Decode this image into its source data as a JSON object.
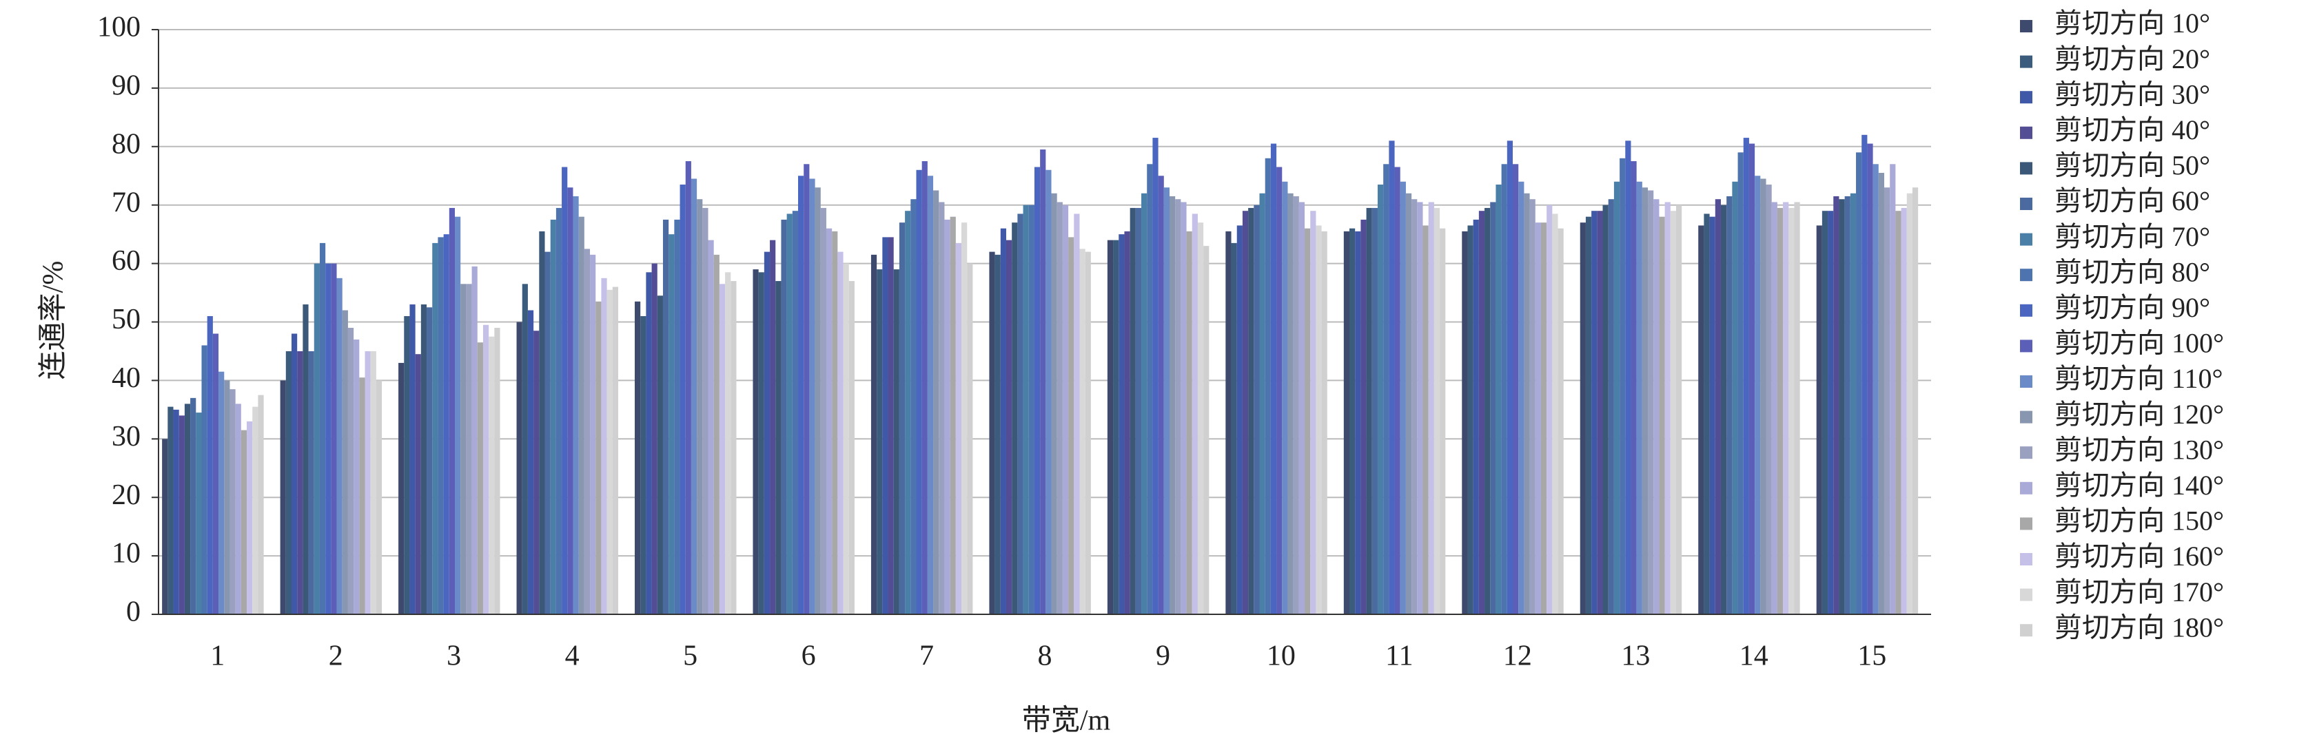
{
  "chart_data": {
    "type": "bar",
    "x_label": "带宽/m",
    "y_label": "连通率/%",
    "categories": [
      "1",
      "2",
      "3",
      "4",
      "5",
      "6",
      "7",
      "8",
      "9",
      "10",
      "11",
      "12",
      "13",
      "14",
      "15"
    ],
    "ylim": [
      0,
      100
    ],
    "yticks": [
      0,
      10,
      20,
      30,
      40,
      50,
      60,
      70,
      80,
      90,
      100
    ],
    "grid": true,
    "series": [
      {
        "name": "剪切方向 10°",
        "color": "#3d4a6e",
        "values": [
          30,
          40,
          43,
          50,
          53.5,
          59,
          61.5,
          62,
          64,
          65.5,
          65.5,
          65.5,
          67,
          66.5,
          66.5
        ]
      },
      {
        "name": "剪切方向 20°",
        "color": "#3c5c7e",
        "values": [
          35.5,
          45,
          51,
          56.5,
          51,
          58.5,
          59,
          61.5,
          64,
          63.5,
          66,
          66.5,
          68,
          68.5,
          69
        ]
      },
      {
        "name": "剪切方向 30°",
        "color": "#4058a8",
        "values": [
          35,
          48,
          53,
          52,
          58.5,
          62,
          64.5,
          66,
          65,
          66.5,
          65.5,
          67.5,
          69,
          68,
          69
        ]
      },
      {
        "name": "剪切方向 40°",
        "color": "#534d96",
        "values": [
          34,
          45,
          44.5,
          48.5,
          60,
          64,
          64.5,
          64,
          65.5,
          69,
          67.5,
          69,
          69,
          71,
          71.5
        ]
      },
      {
        "name": "剪切方向 50°",
        "color": "#3b5878",
        "values": [
          36,
          53,
          53,
          65.5,
          54.5,
          57,
          59,
          67,
          69.5,
          69.5,
          69.5,
          69.5,
          70,
          70,
          71
        ]
      },
      {
        "name": "剪切方向 60°",
        "color": "#4a6aa0",
        "values": [
          37,
          45,
          52.5,
          62,
          67.5,
          67.5,
          67,
          68.5,
          69.5,
          70,
          69.5,
          70.5,
          71,
          71.5,
          71.5
        ]
      },
      {
        "name": "剪切方向 70°",
        "color": "#4a7fa8",
        "values": [
          34.5,
          60,
          63.5,
          67.5,
          65,
          68.5,
          69,
          70,
          72,
          72,
          73.5,
          73.5,
          74,
          74,
          72
        ]
      },
      {
        "name": "剪切方向 80°",
        "color": "#4e74b0",
        "values": [
          46,
          63.5,
          64.5,
          69.5,
          67.5,
          69,
          71,
          70,
          77,
          78,
          77,
          77,
          78,
          79,
          79
        ]
      },
      {
        "name": "剪切方向 90°",
        "color": "#4b66c0",
        "values": [
          51,
          60,
          65,
          76.5,
          73.5,
          75,
          76,
          76.5,
          81.5,
          80.5,
          81,
          81,
          81,
          81.5,
          82
        ]
      },
      {
        "name": "剪切方向 100°",
        "color": "#5b5fb8",
        "values": [
          48,
          60,
          69.5,
          73,
          77.5,
          77,
          77.5,
          79.5,
          75,
          76.5,
          76.5,
          77,
          77.5,
          80.5,
          80.5
        ]
      },
      {
        "name": "剪切方向 110°",
        "color": "#6a8ac8",
        "values": [
          41.5,
          57.5,
          68,
          71.5,
          74.5,
          74.5,
          75,
          76,
          73,
          74,
          74,
          74,
          74,
          75,
          77
        ]
      },
      {
        "name": "剪切方向 120°",
        "color": "#8896b0",
        "values": [
          40,
          52,
          56.5,
          68,
          71,
          73,
          72.5,
          72,
          71.5,
          72,
          72,
          72,
          73,
          74.5,
          75.5
        ]
      },
      {
        "name": "剪切方向 130°",
        "color": "#9aa0c0",
        "values": [
          38.5,
          49,
          56.5,
          62.5,
          69.5,
          69.5,
          70.5,
          70.5,
          71,
          71.5,
          71,
          71,
          72.5,
          73.5,
          73
        ]
      },
      {
        "name": "剪切方向 140°",
        "color": "#aaaad8",
        "values": [
          36,
          47,
          59.5,
          61.5,
          64,
          66,
          67.5,
          70,
          70.5,
          70.5,
          70.5,
          67,
          71,
          70.5,
          77
        ]
      },
      {
        "name": "剪切方向 150°",
        "color": "#a8a8a8",
        "values": [
          31.5,
          40.5,
          46.5,
          53.5,
          61.5,
          65.5,
          68,
          64.5,
          65.5,
          66,
          66.5,
          67,
          68,
          69.5,
          69
        ]
      },
      {
        "name": "剪切方向 160°",
        "color": "#c4c0e8",
        "values": [
          33,
          45,
          49.5,
          57.5,
          56.5,
          62,
          63.5,
          68.5,
          68.5,
          69,
          70.5,
          70,
          70.5,
          70.5,
          69.5
        ]
      },
      {
        "name": "剪切方向 170°",
        "color": "#d8d8d8",
        "values": [
          35.5,
          45,
          47.5,
          55.5,
          58.5,
          60,
          67,
          62.5,
          67,
          66.5,
          69.5,
          68.5,
          69,
          69.5,
          72
        ]
      },
      {
        "name": "剪切方向 180°",
        "color": "#d0d0d0",
        "values": [
          37.5,
          40,
          49,
          56,
          57,
          57,
          60,
          62,
          63,
          65.5,
          66,
          66,
          70,
          70.5,
          73
        ]
      }
    ]
  }
}
